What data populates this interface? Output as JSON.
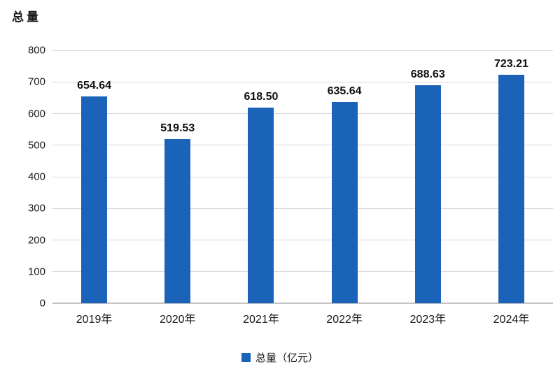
{
  "chart": {
    "title": "总量",
    "legend": {
      "label": "总量（亿元）"
    },
    "colors": {
      "bar": "#1b63b8",
      "gridline": "#d9d9d9",
      "axis_line": "#c3c3c3",
      "text": "#1a1a1a",
      "background": "#ffffff"
    }
  },
  "chart_data": {
    "type": "bar",
    "title": "总量",
    "categories": [
      "2019年",
      "2020年",
      "2021年",
      "2022年",
      "2023年",
      "2024年"
    ],
    "values": [
      654.64,
      519.53,
      618.5,
      635.64,
      688.63,
      723.21
    ],
    "data_labels": [
      "654.64",
      "519.53",
      "618.50",
      "635.64",
      "688.63",
      "723.21"
    ],
    "xlabel": "",
    "ylabel": "总量",
    "ylim": [
      0,
      800
    ],
    "yticks": [
      0,
      100,
      200,
      300,
      400,
      500,
      600,
      700,
      800
    ],
    "grid": true,
    "legend_entries": [
      "总量（亿元）"
    ],
    "legend_position": "bottom"
  }
}
